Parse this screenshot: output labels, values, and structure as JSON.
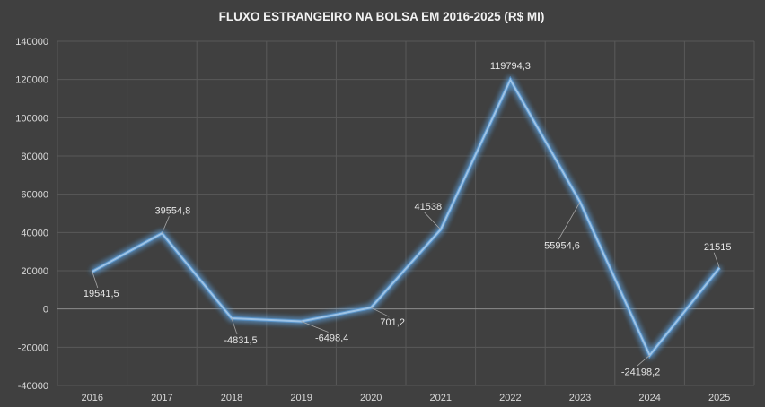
{
  "chart_data": {
    "type": "line",
    "title": "FLUXO ESTRANGEIRO NA BOLSA EM 2016-2025 (R$ MI)",
    "categories": [
      "2016",
      "2017",
      "2018",
      "2019",
      "2020",
      "2021",
      "2022",
      "2023",
      "2024",
      "2025"
    ],
    "series": [
      {
        "values": [
          19541.5,
          39554.8,
          -4831.5,
          -6498.4,
          701.2,
          41538,
          119794.3,
          55954.6,
          -24198.2,
          21515
        ],
        "data_labels": [
          "19541,5",
          "39554,8",
          "-4831,5",
          "-6498,4",
          "701,2",
          "41538",
          "119794,3",
          "55954,6",
          "-24198,2",
          "21515"
        ]
      }
    ],
    "ylim": [
      -40000,
      140000
    ],
    "y_ticks": [
      "140000",
      "120000",
      "100000",
      "80000",
      "60000",
      "40000",
      "20000",
      "0",
      "-20000",
      "-40000"
    ],
    "xlabel": "",
    "ylabel": "",
    "grid": true,
    "legend": "none",
    "colors": {
      "background": "#404040",
      "line": "#5b9bd5",
      "grid": "#595959",
      "text": "#d9d9d9"
    }
  }
}
